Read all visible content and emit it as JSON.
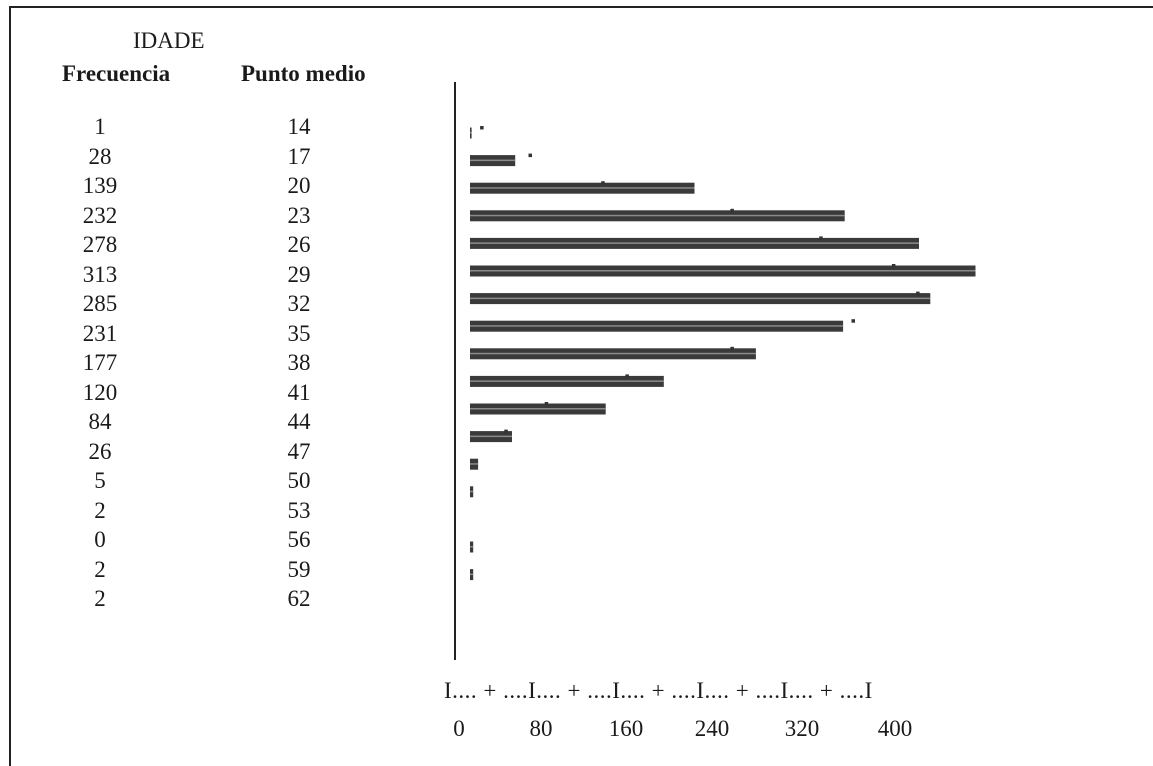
{
  "table": {
    "title": "IDADE",
    "freq_header": "Frecuencia",
    "mid_header": "Punto medio"
  },
  "axis_text": "I.... + ....I.... + ....I.... + ....I.... + ....I.... + ....I",
  "chart_data": {
    "type": "bar",
    "orientation": "horizontal",
    "title": "IDADE",
    "categories": [
      "14",
      "17",
      "20",
      "23",
      "26",
      "29",
      "32",
      "35",
      "38",
      "41",
      "44",
      "47",
      "50",
      "53",
      "56",
      "59",
      "62"
    ],
    "values": [
      1,
      28,
      139,
      232,
      278,
      313,
      285,
      231,
      177,
      120,
      84,
      26,
      5,
      2,
      0,
      2,
      2
    ],
    "expected_markers": [
      5,
      35,
      80,
      160,
      215,
      260,
      275,
      235,
      160,
      95,
      45,
      20,
      4,
      1,
      0,
      0,
      0
    ],
    "xlim": [
      0,
      400
    ],
    "xticks": [
      "0",
      "80",
      "160",
      "240",
      "320",
      "400"
    ],
    "grid": false
  }
}
